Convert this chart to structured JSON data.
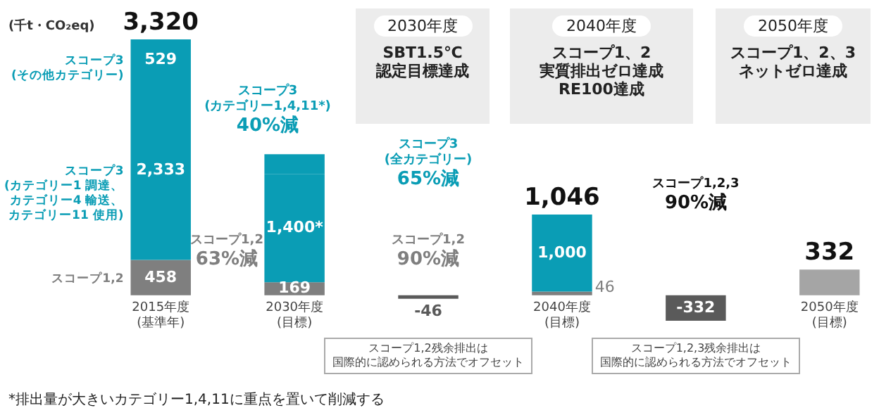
{
  "chart_data": {
    "type": "bar",
    "stacked": true,
    "ylabel": "(千t・CO₂eq)",
    "categories": [
      "2015年度\n(基準年)",
      "2030年度\n(目標)",
      null,
      "2040年度\n(目標)",
      null,
      "2050年度\n(目標)"
    ],
    "series": [
      {
        "name": "スコープ1,2",
        "color": "#7f7f7f",
        "colors": [
          "#7f7f7f",
          "#7f7f7f",
          null,
          "#7f7f7f",
          null,
          "#a5a5a5"
        ],
        "values": [
          458,
          169,
          null,
          46,
          null,
          332
        ],
        "value_labels": [
          "458",
          "169",
          null,
          "46",
          null,
          null
        ]
      },
      {
        "color": "#5a5a5a",
        "values": [
          null,
          null,
          -46,
          null,
          -332,
          null
        ],
        "value_labels": [
          null,
          null,
          "-46",
          null,
          "-332",
          null
        ]
      },
      {
        "name": "スコープ3\n(カテゴリー1 調達、カテゴリー4 輸送、カテゴリー11 使用)",
        "color": "#0a9db5",
        "values": [
          2333,
          1400,
          null,
          1000,
          null,
          null
        ],
        "value_labels": [
          "2,333",
          "1,400*",
          null,
          "1,000",
          null,
          null
        ]
      },
      {
        "name": "スコープ3\n(その他カテゴリー)",
        "color": "#0a9db5",
        "values": [
          529,
          260,
          null,
          null,
          null,
          null
        ],
        "value_labels": [
          "529",
          null,
          null,
          null,
          null,
          null
        ]
      }
    ],
    "totals": [
      "3,320",
      null,
      null,
      "1,046",
      null,
      "332"
    ],
    "annotations": [
      "スコープ3\n(カテゴリー1,4,11*)\n40%減",
      "スコープ3\n(全カテゴリー)\n65%減",
      "スコープ1,2\n63%減",
      "スコープ1,2\n90%減",
      "スコープ1,2,3\n90%減",
      "2030年度",
      "SBT1.5℃認定目標達成",
      "2040年度",
      "スコープ1、2実質排出ゼロ達成RE100達成",
      "2050年度",
      "スコープ1、2、3ネットゼロ達成",
      "スコープ1,2残余排出は国際的に認められる方法でオフセット",
      "スコープ1,2,3残余排出は国際的に認められる方法でオフセット",
      "*排出量が大きいカテゴリー1,4,11に重点を置いて削減する"
    ]
  }
}
